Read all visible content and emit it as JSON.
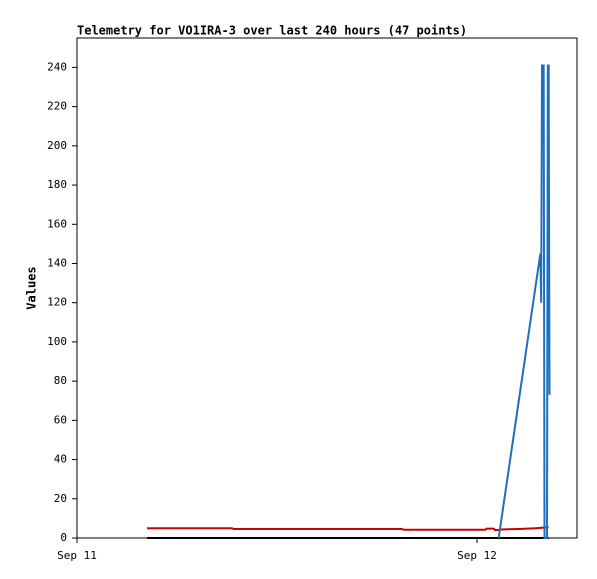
{
  "chart_data": {
    "type": "line",
    "title": "Telemetry for VO1IRA-3 over last 240 hours (47 points)",
    "ylabel": "Values",
    "xlim": [
      0,
      30
    ],
    "xticks": [
      {
        "value": 0,
        "label": "Sep 11"
      },
      {
        "value": 24,
        "label": "Sep 12"
      }
    ],
    "ylim": [
      0,
      255
    ],
    "yticks": [
      0,
      20,
      40,
      60,
      80,
      100,
      120,
      140,
      160,
      180,
      200,
      220,
      240
    ],
    "series": [
      {
        "color": "#cc0000",
        "x": [
          4.2,
          9.3,
          9.4,
          19.5,
          19.6,
          24.5,
          24.6,
          25.0,
          25.1,
          25.6,
          26.5,
          27.5,
          28.3
        ],
        "values": [
          5,
          5,
          4.6,
          4.6,
          4.2,
          4.2,
          4.8,
          4.8,
          4.0,
          4.4,
          4.6,
          5.0,
          5.5
        ]
      },
      {
        "color": "#000000",
        "x": [
          4.2,
          28.3
        ],
        "values": [
          0,
          0
        ]
      },
      {
        "color": "#1f6fbf",
        "x": [
          25.3,
          27.8,
          27.85,
          27.9,
          28.0,
          28.05,
          28.2,
          28.25,
          28.3,
          28.35
        ],
        "values": [
          0,
          145,
          120,
          241,
          241,
          0,
          0,
          241,
          241,
          73
        ]
      }
    ]
  }
}
